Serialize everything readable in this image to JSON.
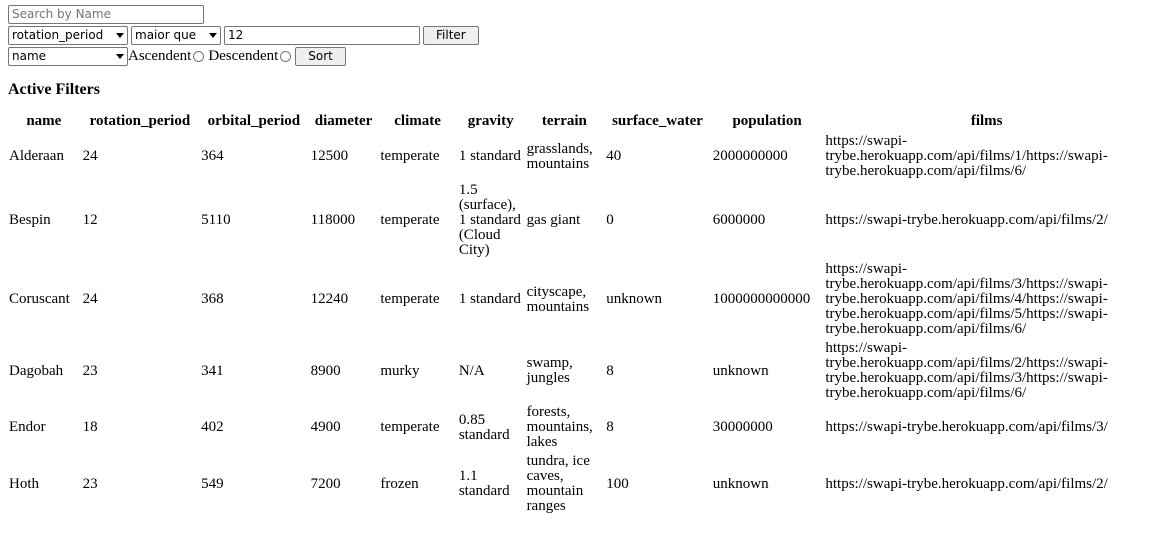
{
  "controls": {
    "search_placeholder": "Search by Name",
    "column_select": "rotation_period",
    "comparison_select": "maior que",
    "value_input": "12",
    "filter_button": "Filter",
    "sort_column_select": "name",
    "sort_asc_label": "Ascendent",
    "sort_desc_label": "Descendent",
    "sort_button": "Sort"
  },
  "heading": "Active Filters",
  "table": {
    "headers": [
      "name",
      "rotation_period",
      "orbital_period",
      "diameter",
      "climate",
      "gravity",
      "terrain",
      "surface_water",
      "population",
      "films"
    ],
    "rows": [
      [
        "Alderaan",
        "24",
        "364",
        "12500",
        "temperate",
        "1 standard",
        "grasslands, mountains",
        "40",
        "2000000000",
        "https://swapi-trybe.herokuapp.com/api/films/1/https://swapi-trybe.herokuapp.com/api/films/6/"
      ],
      [
        "Bespin",
        "12",
        "5110",
        "118000",
        "temperate",
        "1.5 (surface), 1 standard (Cloud City)",
        "gas giant",
        "0",
        "6000000",
        "https://swapi-trybe.herokuapp.com/api/films/2/"
      ],
      [
        "Coruscant",
        "24",
        "368",
        "12240",
        "temperate",
        "1 standard",
        "cityscape, mountains",
        "unknown",
        "1000000000000",
        "https://swapi-trybe.herokuapp.com/api/films/3/https://swapi-trybe.herokuapp.com/api/films/4/https://swapi-trybe.herokuapp.com/api/films/5/https://swapi-trybe.herokuapp.com/api/films/6/"
      ],
      [
        "Dagobah",
        "23",
        "341",
        "8900",
        "murky",
        "N/A",
        "swamp, jungles",
        "8",
        "unknown",
        "https://swapi-trybe.herokuapp.com/api/films/2/https://swapi-trybe.herokuapp.com/api/films/3/https://swapi-trybe.herokuapp.com/api/films/6/"
      ],
      [
        "Endor",
        "18",
        "402",
        "4900",
        "temperate",
        "0.85 standard",
        "forests, mountains, lakes",
        "8",
        "30000000",
        "https://swapi-trybe.herokuapp.com/api/films/3/"
      ],
      [
        "Hoth",
        "23",
        "549",
        "7200",
        "frozen",
        "1.1 standard",
        "tundra, ice caves, mountain ranges",
        "100",
        "unknown",
        "https://swapi-trybe.herokuapp.com/api/films/2/"
      ]
    ]
  }
}
